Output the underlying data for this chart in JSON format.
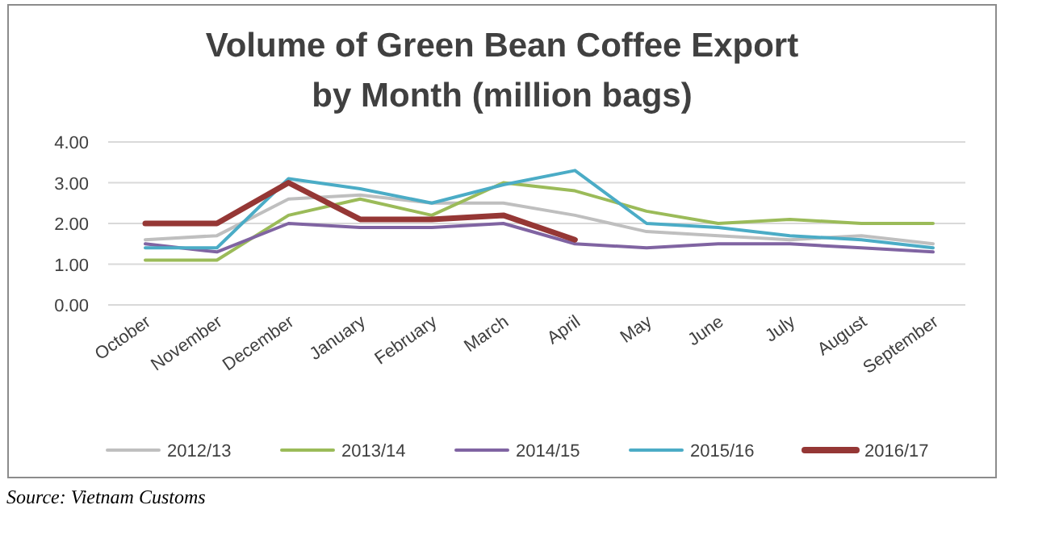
{
  "chart_data": {
    "type": "line",
    "title": "Volume of Green Bean Coffee Export",
    "subtitle": "by Month (million bags)",
    "categories": [
      "October",
      "November",
      "December",
      "January",
      "February",
      "March",
      "April",
      "May",
      "June",
      "July",
      "August",
      "September"
    ],
    "series": [
      {
        "name": "2012/13",
        "color": "#bfbfbf",
        "values": [
          1.6,
          1.7,
          2.6,
          2.7,
          2.5,
          2.5,
          2.2,
          1.8,
          1.7,
          1.6,
          1.7,
          1.5
        ]
      },
      {
        "name": "2013/14",
        "color": "#9bbb59",
        "values": [
          1.1,
          1.1,
          2.2,
          2.6,
          2.2,
          3.0,
          2.8,
          2.3,
          2.0,
          2.1,
          2.0,
          2.0
        ]
      },
      {
        "name": "2014/15",
        "color": "#8064a2",
        "values": [
          1.5,
          1.3,
          2.0,
          1.9,
          1.9,
          2.0,
          1.5,
          1.4,
          1.5,
          1.5,
          1.4,
          1.3
        ]
      },
      {
        "name": "2015/16",
        "color": "#4bacc6",
        "values": [
          1.4,
          1.4,
          3.1,
          2.85,
          2.5,
          2.95,
          3.3,
          2.0,
          1.9,
          1.7,
          1.6,
          1.4
        ]
      },
      {
        "name": "2016/17",
        "color": "#953735",
        "values": [
          2.0,
          2.0,
          3.0,
          2.1,
          2.1,
          2.2,
          1.6,
          null,
          null,
          null,
          null,
          null
        ]
      }
    ],
    "ylim": [
      0,
      4
    ],
    "yticks": [
      {
        "value": 0,
        "label": "0.00"
      },
      {
        "value": 1,
        "label": "1.00"
      },
      {
        "value": 2,
        "label": "2.00"
      },
      {
        "value": 3,
        "label": "3.00"
      },
      {
        "value": 4,
        "label": "4.00"
      }
    ],
    "grid": "y",
    "legend": "bottom",
    "marker": "none",
    "line_style": "solid",
    "annotations": [
      "Source: Vietnam Customs"
    ]
  }
}
